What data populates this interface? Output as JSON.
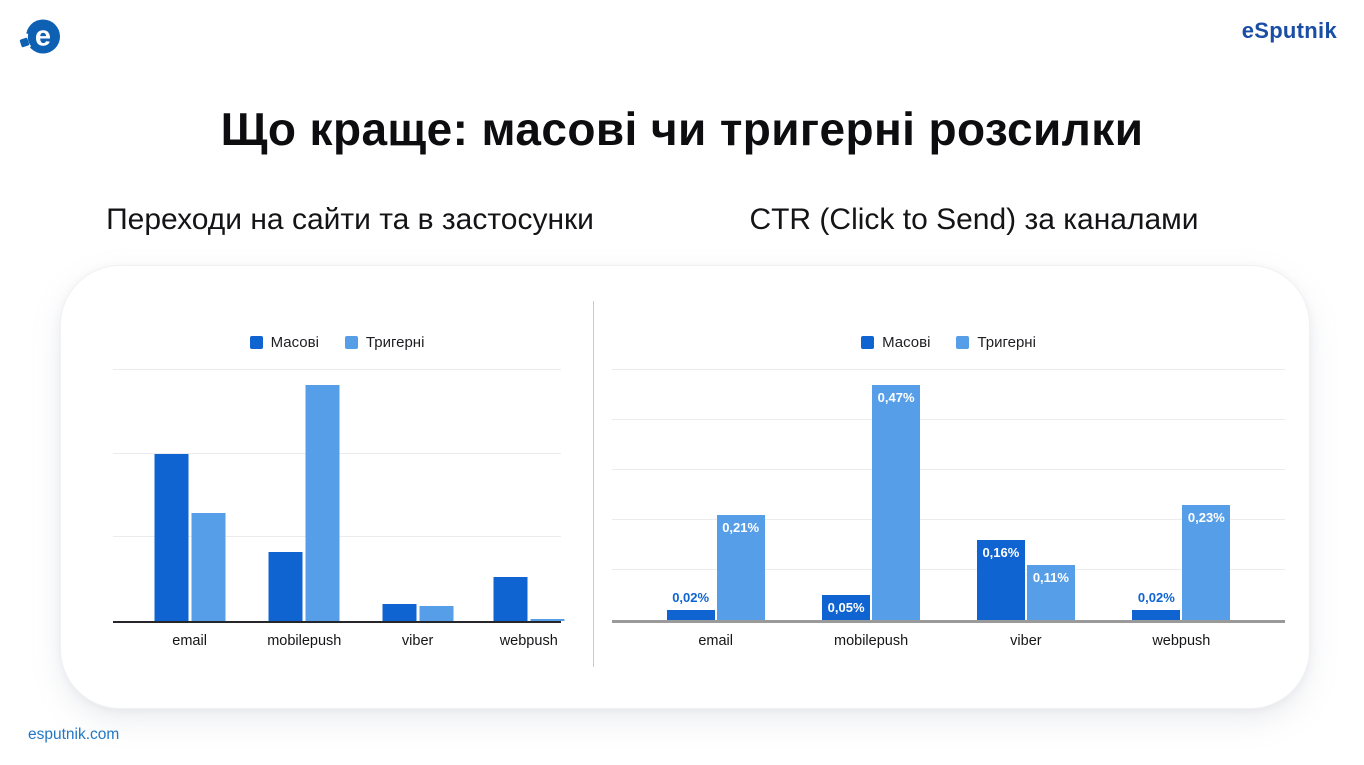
{
  "header": {
    "brand_wordmark": "eSputnik",
    "logo": "esputnik-emblem"
  },
  "title": "Що краще: масові чи тригерні розсилки",
  "footer": {
    "site_link": "esputnik.com"
  },
  "colors": {
    "masovi_bar": "#0f64d2",
    "tryherni_bar": "#579ee9",
    "brand_navy": "#1a4da4",
    "link_blue": "#2277c5"
  },
  "chart_data": [
    {
      "type": "bar",
      "title": "Переходи на сайти та в застосунки",
      "categories": [
        "email",
        "mobilepush",
        "viber",
        "webpush"
      ],
      "series": [
        {
          "name": "Масові",
          "color": "#0f64d2",
          "values": [
            2.0,
            0.82,
            0.2,
            0.53
          ]
        },
        {
          "name": "Тригерні",
          "color": "#579ee9",
          "values": [
            1.29,
            2.82,
            0.18,
            0.03
          ]
        }
      ],
      "xlabel": "",
      "ylabel": "",
      "ylim": [
        0,
        3
      ],
      "gridline_step": 1,
      "grid": true,
      "legend_position": "top",
      "note": "y-axis has no tick labels; values estimated in gridline units"
    },
    {
      "type": "bar",
      "title": "CTR (Click to Send) за каналами",
      "categories": [
        "email",
        "mobilepush",
        "viber",
        "webpush"
      ],
      "series": [
        {
          "name": "Масові",
          "color": "#0f64d2",
          "values": [
            0.02,
            0.05,
            0.16,
            0.02
          ],
          "labels": [
            "0,02%",
            "0,05%",
            "0,16%",
            "0,02%"
          ]
        },
        {
          "name": "Тригерні",
          "color": "#579ee9",
          "values": [
            0.21,
            0.47,
            0.11,
            0.23
          ],
          "labels": [
            "0,21%",
            "0,47%",
            "0,11%",
            "0,23%"
          ]
        }
      ],
      "xlabel": "",
      "ylabel": "",
      "ylim": [
        0,
        0.5
      ],
      "gridline_step": 0.1,
      "grid": true,
      "legend_position": "top",
      "note": "y-axis has no tick labels; bar values shown as data labels"
    }
  ]
}
